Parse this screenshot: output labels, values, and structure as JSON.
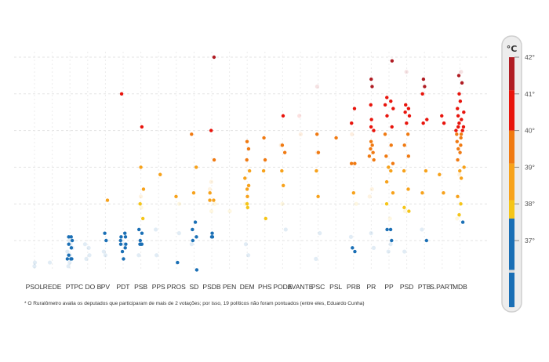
{
  "chart_data": {
    "type": "scatter",
    "unit": "°C",
    "ylim": [
      36.2,
      42.1
    ],
    "y_ticks": [
      {
        "value": 42,
        "label": "42°"
      },
      {
        "value": 41,
        "label": "41°"
      },
      {
        "value": 40,
        "label": "40°"
      },
      {
        "value": 39,
        "label": "39°"
      },
      {
        "value": 38,
        "label": "38°"
      },
      {
        "value": 37,
        "label": "37°"
      }
    ],
    "grid": true,
    "categories": [
      "PSOL",
      "REDE",
      "PT",
      "PC DO B",
      "PV",
      "PDT",
      "PSB",
      "PPS",
      "PROS",
      "SD",
      "PSDB",
      "PEN",
      "DEM",
      "PHS",
      "PODE",
      "AVANTE",
      "PSC",
      "PSL",
      "PRB",
      "PR",
      "PP",
      "PSD",
      "PTB",
      "S.PART.",
      "MDB"
    ],
    "color_scale": [
      {
        "from": 36.2,
        "to": 37.6,
        "color": "#1a6fb5"
      },
      {
        "from": 37.6,
        "to": 38.1,
        "color": "#f5c518"
      },
      {
        "from": 38.1,
        "to": 39.1,
        "color": "#f7a21b"
      },
      {
        "from": 39.1,
        "to": 40.0,
        "color": "#f07a12"
      },
      {
        "from": 40.0,
        "to": 41.1,
        "color": "#e8140c"
      },
      {
        "from": 41.1,
        "to": 42.1,
        "color": "#b01d24"
      }
    ],
    "points": {
      "PSOL": [],
      "REDE": [],
      "PT": [
        36.5,
        36.5,
        36.5,
        36.6,
        36.8,
        36.9,
        37.0,
        37.1,
        37.1
      ],
      "PC DO B": [],
      "PV": [
        37.0,
        37.2,
        38.1
      ],
      "PDT": [
        36.5,
        36.7,
        36.8,
        36.9,
        36.9,
        37.0,
        37.1,
        37.1,
        37.2,
        41.0
      ],
      "PSB": [
        36.9,
        36.9,
        36.9,
        37.0,
        37.2,
        37.3,
        37.6,
        38.0,
        38.4,
        39.0,
        40.1
      ],
      "PPS": [
        38.8
      ],
      "PROS": [
        36.4,
        38.2
      ],
      "SD": [
        36.2,
        37.0,
        37.1,
        37.3,
        37.5,
        38.3,
        39.0,
        39.9
      ],
      "PSDB": [
        37.1,
        37.1,
        37.2,
        38.1,
        38.1,
        38.3,
        39.2,
        40.0,
        42.0
      ],
      "PEN": [],
      "DEM": [
        37.9,
        38.0,
        38.2,
        38.4,
        38.5,
        38.7,
        38.9,
        39.2,
        39.5,
        39.7
      ],
      "PHS": [
        37.6,
        38.9,
        39.2,
        39.8
      ],
      "PODE": [
        38.5,
        38.9,
        39.4,
        39.6,
        40.4
      ],
      "AVANTE": [],
      "PSC": [
        38.2,
        38.9,
        39.4,
        39.9
      ],
      "PSL": [
        39.8
      ],
      "PRB": [
        36.7,
        36.8,
        38.3,
        39.1,
        39.1,
        40.2,
        40.6
      ],
      "PR": [
        39.2,
        39.3,
        39.4,
        39.5,
        39.6,
        39.7,
        40.0,
        40.1,
        40.3,
        40.7,
        41.2,
        41.4
      ],
      "PP": [
        37.0,
        37.3,
        37.3,
        38.0,
        38.3,
        38.6,
        38.9,
        39.0,
        39.1,
        39.3,
        39.6,
        39.9,
        40.1,
        40.4,
        40.6,
        40.7,
        40.8,
        40.9,
        41.9
      ],
      "PSD": [
        37.8,
        37.9,
        38.4,
        38.9,
        39.3,
        39.6,
        39.9,
        40.2,
        40.4,
        40.5,
        40.6,
        40.7
      ],
      "PTB": [
        37.0,
        38.3,
        38.9,
        40.2,
        40.3,
        41.0,
        41.2,
        41.4
      ],
      "S.PART.": [
        38.3,
        38.8,
        40.2,
        40.4
      ],
      "MDB": [
        37.5,
        37.7,
        38.0,
        38.2,
        38.7,
        38.9,
        39.0,
        39.2,
        39.4,
        39.5,
        39.6,
        39.7,
        39.8,
        39.9,
        39.9,
        40.0,
        40.0,
        40.1,
        40.1,
        40.2,
        40.3,
        40.4,
        40.5,
        40.6,
        40.8,
        41.0,
        41.3,
        41.5
      ]
    },
    "faint_points": {
      "PSOL": [
        36.3,
        36.4
      ],
      "REDE": [
        36.4
      ],
      "PT": [
        36.3,
        36.4,
        36.6,
        36.7,
        36.8,
        36.9,
        37.0
      ],
      "PC DO B": [
        36.5,
        36.6,
        36.8,
        36.9
      ],
      "PV": [
        36.6,
        36.7
      ],
      "PDT": [
        36.9
      ],
      "PSB": [
        36.6,
        37.9,
        38.2
      ],
      "PPS": [
        36.6,
        37.3
      ],
      "PROS": [
        37.2,
        38.0
      ],
      "SD": [
        36.9
      ],
      "PSDB": [
        37.8,
        38.0,
        38.4,
        38.6
      ],
      "PEN": [
        37.8
      ],
      "DEM": [
        36.6,
        36.9,
        38.0
      ],
      "PHS": [],
      "PODE": [
        37.3,
        38.0,
        39.6
      ],
      "AVANTE": [
        39.9,
        40.4
      ],
      "PSC": [
        36.5,
        37.2,
        39.4,
        41.2
      ],
      "PSL": [],
      "PRB": [
        37.1,
        38.0,
        39.9
      ],
      "PR": [
        36.8,
        37.2,
        38.2,
        38.4
      ],
      "PP": [
        36.7,
        36.9,
        37.6
      ],
      "PSD": [
        36.7,
        37.8,
        41.6
      ],
      "PTB": [
        37.3
      ],
      "S.PART.": [],
      "MDB": [
        37.6,
        38.8,
        41.6
      ]
    }
  },
  "footnote": "* O Ruralômetro avalia os deputados que participaram de mais de 2 votações; por isso, 19 políticos não foram pontuados (entre eles, Eduardo Cunha)"
}
